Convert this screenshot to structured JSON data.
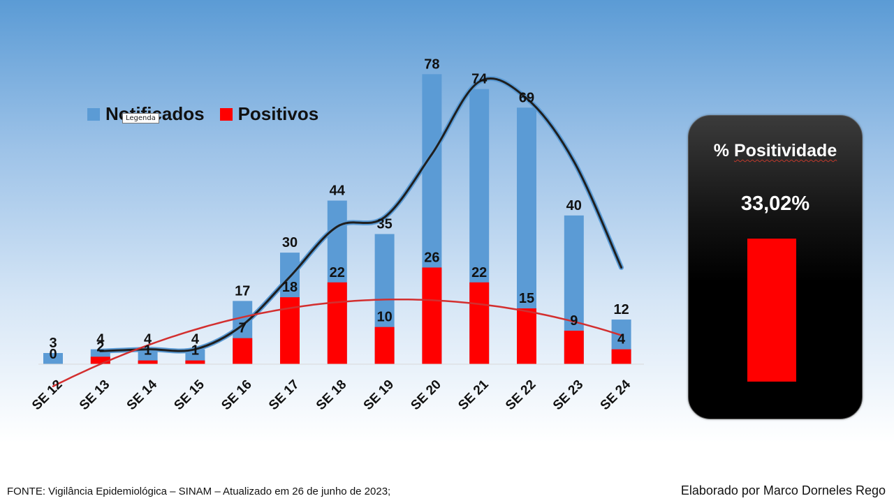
{
  "chart_data": {
    "type": "bar",
    "categories": [
      "SE 12",
      "SE 13",
      "SE 14",
      "SE 15",
      "SE 16",
      "SE 17",
      "SE 18",
      "SE 19",
      "SE 20",
      "SE 21",
      "SE 22",
      "SE 23",
      "SE 24"
    ],
    "series": [
      {
        "name": "Notificados",
        "values": [
          3,
          4,
          4,
          4,
          17,
          30,
          44,
          35,
          78,
          74,
          69,
          40,
          12
        ],
        "color": "#5b9bd5"
      },
      {
        "name": "Positivos",
        "values": [
          0,
          2,
          1,
          1,
          7,
          18,
          22,
          10,
          26,
          22,
          15,
          9,
          4
        ],
        "color": "#ff0000"
      }
    ],
    "trendlines": [
      {
        "series": "Notificados",
        "color": "#1f1f1f",
        "style": "smoothed"
      },
      {
        "series": "Positivos",
        "color": "#d32f2f",
        "style": "smoothed"
      }
    ],
    "ylim": [
      0,
      82
    ],
    "legend_position": "top-left",
    "grid": false
  },
  "legend": {
    "items": [
      {
        "label": "Notificados",
        "color": "#5b9bd5"
      },
      {
        "label": "Positivos",
        "color": "#ff0000"
      }
    ]
  },
  "tooltip": {
    "text": "Legenda"
  },
  "panel": {
    "title_prefix": "% ",
    "title_word": "Positividade",
    "value": "33,02%",
    "bar_color": "#ff0000"
  },
  "footer": {
    "source": "FONTE: Vigilância Epidemiológica – SINAM – Atualizado em 26 de junho de 2023;",
    "author": "Elaborado por Marco Dorneles Rego"
  }
}
